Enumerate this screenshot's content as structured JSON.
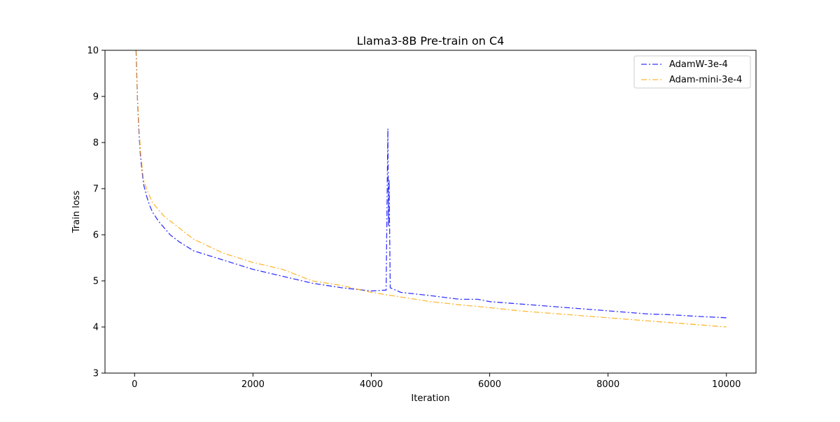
{
  "chart_data": {
    "type": "line",
    "title": "Llama3-8B Pre-train on C4",
    "xlabel": "Iteration",
    "ylabel": "Train loss",
    "xlim": [
      -500,
      10500
    ],
    "ylim": [
      3,
      10
    ],
    "x_ticks": [
      0,
      2000,
      4000,
      6000,
      8000,
      10000
    ],
    "x_tick_labels": [
      "0",
      "2000",
      "4000",
      "6000",
      "8000",
      "10000"
    ],
    "y_ticks": [
      3,
      4,
      5,
      6,
      7,
      8,
      9,
      10
    ],
    "y_tick_labels": [
      "3",
      "4",
      "5",
      "6",
      "7",
      "8",
      "9",
      "10"
    ],
    "grid": false,
    "legend_position": "top-right",
    "series": [
      {
        "name": "AdamW-3e-4",
        "color": "#0000ff",
        "linestyle": "dashdot",
        "x": [
          25,
          50,
          75,
          100,
          150,
          200,
          250,
          300,
          400,
          500,
          600,
          750,
          1000,
          1250,
          1500,
          2000,
          2500,
          3000,
          3500,
          4000,
          4250,
          4280,
          4290,
          4300,
          4320,
          4500,
          5000,
          5500,
          5800,
          6000,
          6500,
          7000,
          7500,
          8000,
          8500,
          8700,
          9000,
          9500,
          10000
        ],
        "y": [
          10.0,
          8.9,
          8.2,
          7.7,
          7.1,
          6.85,
          6.65,
          6.5,
          6.3,
          6.15,
          6.0,
          5.85,
          5.65,
          5.55,
          5.45,
          5.25,
          5.1,
          4.95,
          4.85,
          4.78,
          4.8,
          8.3,
          6.2,
          7.2,
          4.85,
          4.75,
          4.68,
          4.6,
          4.6,
          4.55,
          4.5,
          4.45,
          4.4,
          4.35,
          4.3,
          4.28,
          4.27,
          4.23,
          4.2
        ]
      },
      {
        "name": "Adam-mini-3e-4",
        "color": "#ffa500",
        "linestyle": "dashdot",
        "x": [
          25,
          50,
          75,
          100,
          150,
          200,
          250,
          300,
          400,
          500,
          600,
          750,
          1000,
          1250,
          1500,
          2000,
          2500,
          3000,
          3500,
          4000,
          4500,
          5000,
          5500,
          6000,
          6500,
          7000,
          7500,
          8000,
          8500,
          9000,
          9500,
          10000
        ],
        "y": [
          10.0,
          8.9,
          8.3,
          7.8,
          7.2,
          7.0,
          6.85,
          6.7,
          6.55,
          6.4,
          6.3,
          6.15,
          5.9,
          5.75,
          5.6,
          5.4,
          5.25,
          5.0,
          4.9,
          4.75,
          4.65,
          4.55,
          4.48,
          4.42,
          4.35,
          4.3,
          4.25,
          4.2,
          4.15,
          4.1,
          4.05,
          4.0
        ]
      }
    ]
  }
}
